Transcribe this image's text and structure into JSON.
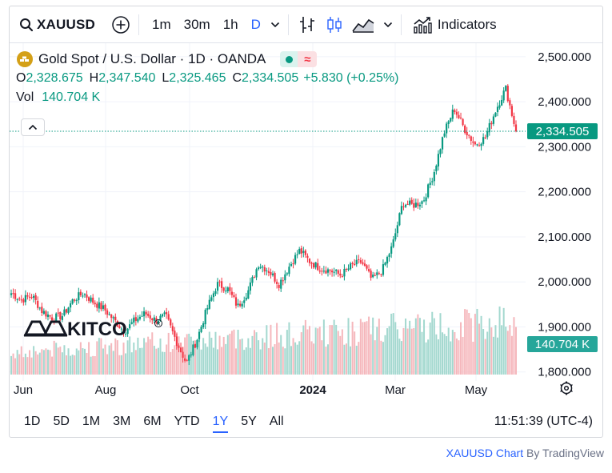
{
  "toolbar": {
    "symbol": "XAUUSD",
    "intervals": [
      "1m",
      "30m",
      "1h",
      "D"
    ],
    "active_interval": "D",
    "indicators_label": "Indicators",
    "icons": [
      "search-icon",
      "plus-circle-icon",
      "chevron-down-icon",
      "bar-style-icon",
      "candle-style-icon",
      "area-style-icon",
      "chevron-down-icon",
      "indicators-icon"
    ]
  },
  "legend": {
    "title": "Gold Spot / U.S. Dollar · 1D · OANDA",
    "o_label": "O",
    "o_value": "2,328.675",
    "h_label": "H",
    "h_value": "2,347.540",
    "l_label": "L",
    "l_value": "2,325.465",
    "c_label": "C",
    "c_value": "2,334.505",
    "change": "+5.830 (+0.25%)",
    "vol_label": "Vol",
    "vol_value": "140.704 K"
  },
  "price_axis": {
    "ticks": [
      "2,500.000",
      "2,400.000",
      "2,300.000",
      "2,200.000",
      "2,100.000",
      "2,000.000",
      "1,900.000",
      "1,800.000"
    ],
    "last_price": "2,334.505",
    "last_volume": "140.704 K"
  },
  "time_axis": {
    "ticks": [
      "Jun",
      "Aug",
      "Oct",
      "2024",
      "Mar",
      "May"
    ]
  },
  "watermark": "KITCO",
  "ranges": [
    "1D",
    "5D",
    "1M",
    "3M",
    "6M",
    "YTD",
    "1Y",
    "5Y",
    "All"
  ],
  "active_range": "1Y",
  "clock": "11:51:39 (UTC-4)",
  "attribution": {
    "link_text": "XAUUSD Chart",
    "suffix": "By TradingView"
  },
  "colors": {
    "up": "#089981",
    "down": "#f23645",
    "accent": "#2962ff",
    "gold": "#d4a017"
  },
  "chart_data": {
    "type": "candlestick",
    "title": "Gold Spot / U.S. Dollar · 1D · OANDA",
    "symbol": "XAUUSD",
    "ylim": [
      1780,
      2530
    ],
    "yticks": [
      2500,
      2400,
      2300,
      2200,
      2100,
      2000,
      1900,
      1800
    ],
    "x_ticks": [
      "Jun",
      "Aug",
      "Oct",
      "2024",
      "Mar",
      "May"
    ],
    "last_close": 2334.505,
    "last_volume_k": 140.704,
    "weekly_close_path": [
      {
        "period": "2023-05-W4",
        "close": 1975
      },
      {
        "period": "2023-06-W1",
        "close": 1960
      },
      {
        "period": "2023-06-W2",
        "close": 1970
      },
      {
        "period": "2023-06-W3",
        "close": 1935
      },
      {
        "period": "2023-06-W4",
        "close": 1920
      },
      {
        "period": "2023-07-W1",
        "close": 1925
      },
      {
        "period": "2023-07-W2",
        "close": 1960
      },
      {
        "period": "2023-07-W3",
        "close": 1975
      },
      {
        "period": "2023-07-W4",
        "close": 1955
      },
      {
        "period": "2023-08-W1",
        "close": 1940
      },
      {
        "period": "2023-08-W2",
        "close": 1915
      },
      {
        "period": "2023-08-W3",
        "close": 1890
      },
      {
        "period": "2023-08-W4",
        "close": 1915
      },
      {
        "period": "2023-09-W1",
        "close": 1930
      },
      {
        "period": "2023-09-W2",
        "close": 1915
      },
      {
        "period": "2023-09-W3",
        "close": 1925
      },
      {
        "period": "2023-09-W4",
        "close": 1870
      },
      {
        "period": "2023-10-W1",
        "close": 1820
      },
      {
        "period": "2023-10-W2",
        "close": 1870
      },
      {
        "period": "2023-10-W3",
        "close": 1940
      },
      {
        "period": "2023-10-W4",
        "close": 1995
      },
      {
        "period": "2023-11-W1",
        "close": 1985
      },
      {
        "period": "2023-11-W2",
        "close": 1945
      },
      {
        "period": "2023-11-W3",
        "close": 1980
      },
      {
        "period": "2023-11-W4",
        "close": 2040
      },
      {
        "period": "2023-12-W1",
        "close": 2025
      },
      {
        "period": "2023-12-W2",
        "close": 1995
      },
      {
        "period": "2023-12-W3",
        "close": 2035
      },
      {
        "period": "2023-12-W4",
        "close": 2070
      },
      {
        "period": "2024-01-W1",
        "close": 2045
      },
      {
        "period": "2024-01-W2",
        "close": 2030
      },
      {
        "period": "2024-01-W3",
        "close": 2025
      },
      {
        "period": "2024-01-W4",
        "close": 2015
      },
      {
        "period": "2024-02-W1",
        "close": 2035
      },
      {
        "period": "2024-02-W2",
        "close": 2045
      },
      {
        "period": "2024-02-W3",
        "close": 2005
      },
      {
        "period": "2024-02-W4",
        "close": 2025
      },
      {
        "period": "2024-03-W1",
        "close": 2080
      },
      {
        "period": "2024-03-W2",
        "close": 2175
      },
      {
        "period": "2024-03-W3",
        "close": 2170
      },
      {
        "period": "2024-03-W4",
        "close": 2180
      },
      {
        "period": "2024-04-W1",
        "close": 2240
      },
      {
        "period": "2024-04-W2",
        "close": 2330
      },
      {
        "period": "2024-04-W3",
        "close": 2385
      },
      {
        "period": "2024-04-W4",
        "close": 2340
      },
      {
        "period": "2024-05-W1",
        "close": 2305
      },
      {
        "period": "2024-05-W2",
        "close": 2320
      },
      {
        "period": "2024-05-W3",
        "close": 2380
      },
      {
        "period": "2024-05-W4",
        "close": 2430
      },
      {
        "period": "2024-05-W5",
        "close": 2334.5
      }
    ]
  }
}
